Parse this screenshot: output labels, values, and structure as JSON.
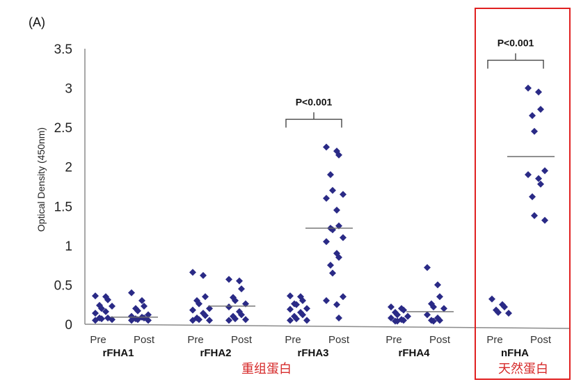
{
  "panel_label": "(A)",
  "colors": {
    "point": "#2a2a86",
    "axis": "#8a8a8a",
    "highlight": "#e02020",
    "annotation": "#d62a2a"
  },
  "annotations": {
    "recombinant": "重组蛋白",
    "native": "天然蛋白"
  },
  "chart_data": {
    "type": "scatter",
    "title": "",
    "ylabel": "Optical Density (450nm)",
    "xlabel": "",
    "ylim": [
      0,
      3.5
    ],
    "yticks": [
      "0",
      "0.5",
      "1",
      "1.5",
      "2",
      "2.5",
      "3",
      "3.5"
    ],
    "grid": false,
    "groups": [
      {
        "name": "rFHA1",
        "subgroups": [
          {
            "label": "Pre",
            "values": [
              0.36,
              0.35,
              0.31,
              0.24,
              0.2,
              0.23,
              0.14,
              0.16,
              0.08,
              0.08,
              0.07,
              0.06,
              0.05
            ]
          },
          {
            "label": "Post",
            "values": [
              0.4,
              0.3,
              0.23,
              0.2,
              0.17,
              0.12,
              0.1,
              0.09,
              0.08,
              0.07,
              0.06,
              0.05,
              0.05
            ]
          }
        ],
        "median": 0.09,
        "p_value": ""
      },
      {
        "name": "rFHA2",
        "subgroups": [
          {
            "label": "Pre",
            "values": [
              0.66,
              0.62,
              0.35,
              0.3,
              0.26,
              0.2,
              0.18,
              0.14,
              0.11,
              0.08,
              0.06,
              0.05,
              0.05
            ]
          },
          {
            "label": "Post",
            "values": [
              0.57,
              0.55,
              0.45,
              0.34,
              0.3,
              0.26,
              0.22,
              0.16,
              0.12,
              0.1,
              0.07,
              0.06,
              0.05
            ]
          }
        ],
        "median": 0.23,
        "p_value": ""
      },
      {
        "name": "rFHA3",
        "subgroups": [
          {
            "label": "Pre",
            "values": [
              0.36,
              0.35,
              0.3,
              0.26,
              0.25,
              0.2,
              0.19,
              0.15,
              0.12,
              0.1,
              0.07,
              0.05,
              0.05
            ]
          },
          {
            "label": "Post",
            "values": [
              2.25,
              2.2,
              2.15,
              1.9,
              1.7,
              1.65,
              1.6,
              1.45,
              1.25,
              1.22,
              1.2,
              1.1,
              1.05,
              0.9,
              0.85,
              0.75,
              0.65,
              0.35,
              0.3,
              0.25,
              0.08
            ]
          }
        ],
        "median": 1.22,
        "p_value": "P<0.001"
      },
      {
        "name": "rFHA4",
        "subgroups": [
          {
            "label": "Pre",
            "values": [
              0.22,
              0.2,
              0.18,
              0.15,
              0.12,
              0.1,
              0.08,
              0.06,
              0.05,
              0.04,
              0.04
            ]
          },
          {
            "label": "Post",
            "values": [
              0.72,
              0.5,
              0.35,
              0.26,
              0.22,
              0.2,
              0.12,
              0.08,
              0.05,
              0.05,
              0.04
            ]
          }
        ],
        "median": 0.16,
        "p_value": ""
      },
      {
        "name": "nFHA",
        "subgroups": [
          {
            "label": "Pre",
            "values": [
              0.32,
              0.25,
              0.22,
              0.18,
              0.15,
              0.14
            ]
          },
          {
            "label": "Post",
            "values": [
              3.0,
              2.95,
              2.73,
              2.65,
              2.45,
              1.95,
              1.9,
              1.85,
              1.78,
              1.62,
              1.38,
              1.32
            ]
          }
        ],
        "median": 2.13,
        "p_value": "P<0.001",
        "highlighted": true
      }
    ]
  }
}
